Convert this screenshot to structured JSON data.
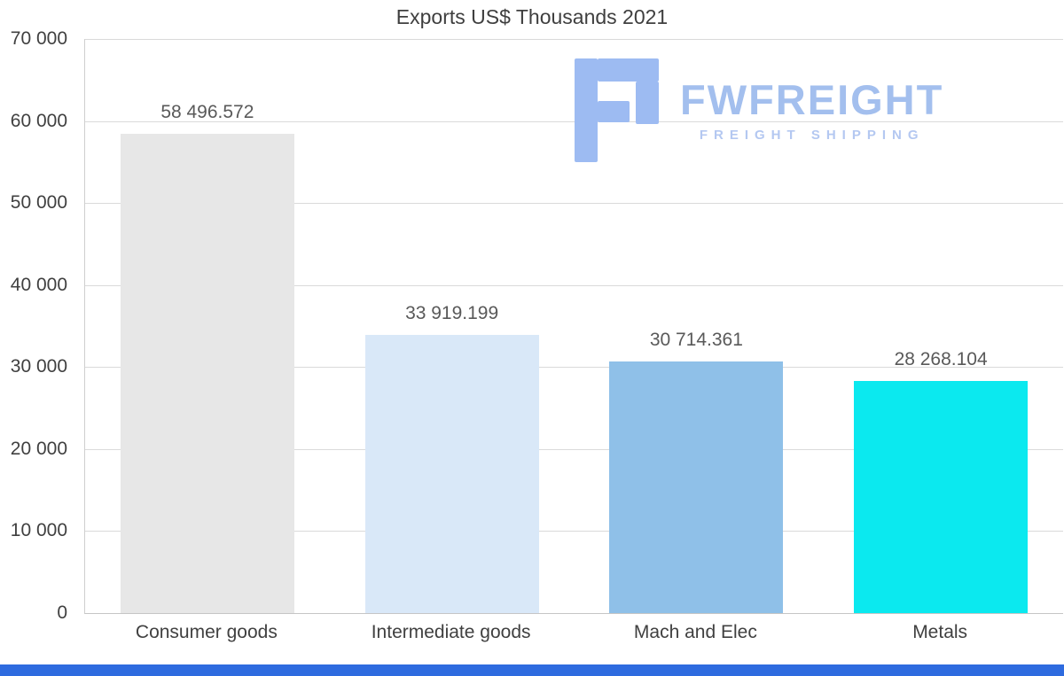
{
  "chart_data": {
    "type": "bar",
    "title": "Exports US$ Thousands 2021",
    "categories": [
      "Consumer goods",
      "Intermediate goods",
      "Mach and Elec",
      "Metals"
    ],
    "values": [
      58496.572,
      33919.199,
      30714.361,
      28268.104
    ],
    "value_labels": [
      "58 496.572",
      "33 919.199",
      "30 714.361",
      "28 268.104"
    ],
    "bar_colors": [
      "#e7e7e7",
      "#d9e8f8",
      "#8fc0e8",
      "#0be9ef"
    ],
    "ylim": [
      0,
      70000
    ],
    "ytick_interval": 10000,
    "ytick_labels": [
      "0",
      "10 000",
      "20 000",
      "30 000",
      "40 000",
      "50 000",
      "60 000",
      "70 000"
    ],
    "grid": true,
    "legend": "none",
    "xlabel": "",
    "ylabel": ""
  },
  "logo": {
    "mark": "fwfreight-block-f-icon",
    "wordmark": "FWFREIGHT",
    "tagline": "FREIGHT SHIPPING",
    "wordmark_color": "#a3bfee",
    "tagline_color": "#b4c8f1",
    "mark_color": "#9dbbf2"
  },
  "page": {
    "background_color": "#ffffff",
    "footer_bar_color": "#2e6bdf",
    "gridline_color": "#dadada",
    "text_color": "#404040"
  }
}
